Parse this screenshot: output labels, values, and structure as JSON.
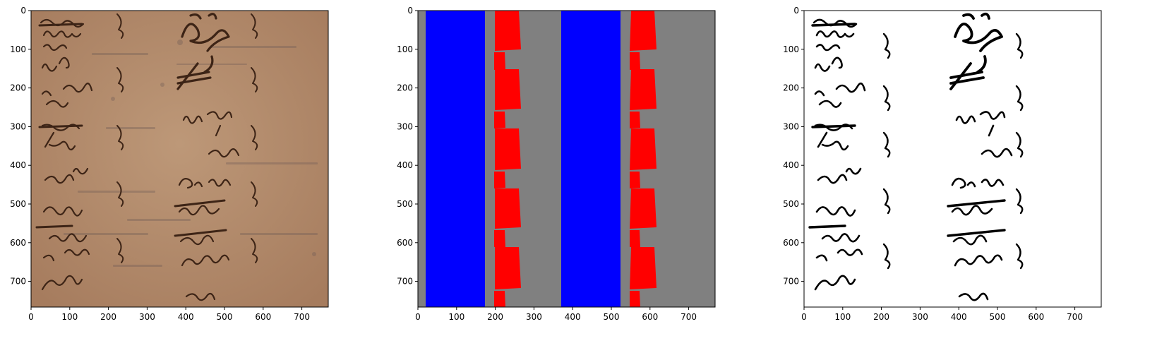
{
  "figure": {
    "panels": [
      {
        "id": "manuscript-photo",
        "content": "photo",
        "x_ticks": [
          "0",
          "100",
          "200",
          "300",
          "400",
          "500",
          "600",
          "700"
        ],
        "y_ticks": [
          "0",
          "100",
          "200",
          "300",
          "400",
          "500",
          "600",
          "700"
        ],
        "colors": {
          "background": "#b58e70",
          "ink": "#3d2416"
        }
      },
      {
        "id": "segmentation-mask",
        "content": "mask",
        "x_ticks": [
          "0",
          "100",
          "200",
          "300",
          "400",
          "500",
          "600",
          "700"
        ],
        "y_ticks": [
          "0",
          "100",
          "200",
          "300",
          "400",
          "500",
          "600",
          "700"
        ],
        "colors": {
          "background": "#808080",
          "text_region": "#0000ff",
          "marker_region": "#ff0000"
        }
      },
      {
        "id": "binarized-image",
        "content": "binary",
        "x_ticks": [
          "0",
          "100",
          "200",
          "300",
          "400",
          "500",
          "600",
          "700"
        ],
        "y_ticks": [
          "0",
          "100",
          "200",
          "300",
          "400",
          "500",
          "600",
          "700"
        ],
        "colors": {
          "background": "#ffffff",
          "ink": "#000000"
        }
      }
    ]
  }
}
